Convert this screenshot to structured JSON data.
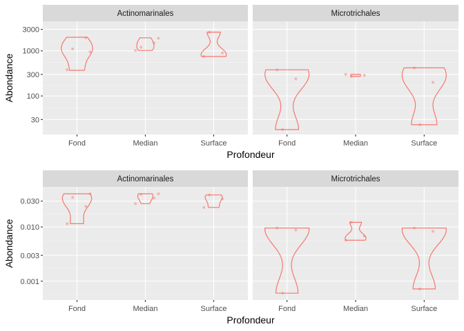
{
  "colors": {
    "violin": "#F8766D",
    "point": "#F8766D"
  },
  "chart_data": [
    {
      "type": "violin",
      "y_scale": "log10",
      "ylim": [
        14,
        4500
      ],
      "ylabel": "Abondance",
      "xlabel": "Profondeur",
      "y_ticks": [
        30,
        100,
        300,
        1000,
        3000
      ],
      "y_tick_labels": [
        "30",
        "100",
        "300",
        "1000",
        "3000"
      ],
      "categories": [
        "Fond",
        "Median",
        "Surface"
      ],
      "facets": [
        {
          "name": "Actinomarinales",
          "violins": [
            {
              "category": "Fond",
              "min": 370,
              "max": 2000
            },
            {
              "category": "Median",
              "min": 1020,
              "max": 1950
            },
            {
              "category": "Surface",
              "min": 750,
              "max": 2600
            }
          ],
          "points": [
            {
              "category": "Fond",
              "y": 380
            },
            {
              "category": "Fond",
              "y": 1950
            },
            {
              "category": "Fond",
              "y": 1100
            },
            {
              "category": "Fond",
              "y": 950
            },
            {
              "category": "Median",
              "y": 1020
            },
            {
              "category": "Median",
              "y": 1500
            },
            {
              "category": "Median",
              "y": 1200
            },
            {
              "category": "Median",
              "y": 1900
            },
            {
              "category": "Surface",
              "y": 750
            },
            {
              "category": "Surface",
              "y": 900
            },
            {
              "category": "Surface",
              "y": 2600
            }
          ]
        },
        {
          "name": "Microtrichales",
          "violins": [
            {
              "category": "Fond",
              "min": 18,
              "max": 380
            },
            {
              "category": "Median",
              "min": 270,
              "max": 300
            },
            {
              "category": "Surface",
              "min": 23,
              "max": 420
            }
          ],
          "points": [
            {
              "category": "Fond",
              "y": 380
            },
            {
              "category": "Fond",
              "y": 240
            },
            {
              "category": "Fond",
              "y": 18
            },
            {
              "category": "Median",
              "y": 300
            },
            {
              "category": "Median",
              "y": 285
            },
            {
              "category": "Median",
              "y": 270
            },
            {
              "category": "Surface",
              "y": 420
            },
            {
              "category": "Surface",
              "y": 200
            },
            {
              "category": "Surface",
              "y": 23
            }
          ]
        }
      ]
    },
    {
      "type": "violin",
      "y_scale": "log10",
      "ylim": [
        0.00045,
        0.055
      ],
      "ylabel": "Abondance",
      "xlabel": "Profondeur",
      "y_ticks": [
        0.001,
        0.003,
        0.01,
        0.03
      ],
      "y_tick_labels": [
        "0.001",
        "0.003",
        "0.010",
        "0.030"
      ],
      "categories": [
        "Fond",
        "Median",
        "Surface"
      ],
      "facets": [
        {
          "name": "Actinomarinales",
          "violins": [
            {
              "category": "Fond",
              "min": 0.0115,
              "max": 0.041
            },
            {
              "category": "Median",
              "min": 0.027,
              "max": 0.041
            },
            {
              "category": "Surface",
              "min": 0.023,
              "max": 0.039
            }
          ],
          "points": [
            {
              "category": "Fond",
              "y": 0.0115
            },
            {
              "category": "Fond",
              "y": 0.024
            },
            {
              "category": "Fond",
              "y": 0.035
            },
            {
              "category": "Fond",
              "y": 0.041
            },
            {
              "category": "Median",
              "y": 0.027
            },
            {
              "category": "Median",
              "y": 0.034
            },
            {
              "category": "Median",
              "y": 0.04
            },
            {
              "category": "Median",
              "y": 0.041
            },
            {
              "category": "Surface",
              "y": 0.023
            },
            {
              "category": "Surface",
              "y": 0.033
            },
            {
              "category": "Surface",
              "y": 0.039
            }
          ]
        },
        {
          "name": "Microtrichales",
          "violins": [
            {
              "category": "Fond",
              "min": 0.0006,
              "max": 0.0096
            },
            {
              "category": "Median",
              "min": 0.0057,
              "max": 0.0122
            },
            {
              "category": "Surface",
              "min": 0.00072,
              "max": 0.0096
            }
          ],
          "points": [
            {
              "category": "Fond",
              "y": 0.0096
            },
            {
              "category": "Fond",
              "y": 0.0088
            },
            {
              "category": "Fond",
              "y": 0.0006
            },
            {
              "category": "Median",
              "y": 0.0057
            },
            {
              "category": "Median",
              "y": 0.0068
            },
            {
              "category": "Median",
              "y": 0.0122
            },
            {
              "category": "Surface",
              "y": 0.0096
            },
            {
              "category": "Surface",
              "y": 0.0083
            },
            {
              "category": "Surface",
              "y": 0.00072
            }
          ]
        }
      ]
    }
  ]
}
